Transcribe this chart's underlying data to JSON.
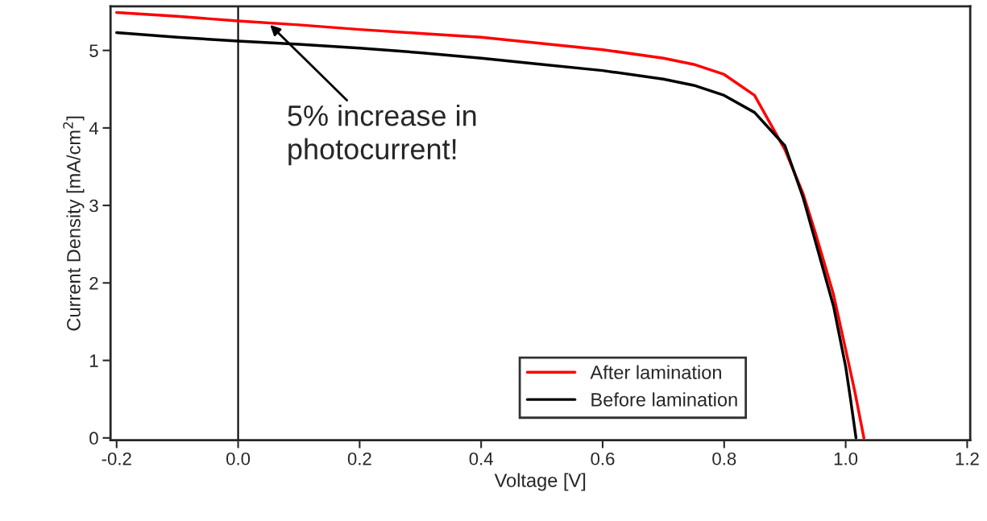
{
  "chart_data": {
    "type": "line",
    "xlabel": "Voltage [V]",
    "ylabel": "Current Density [mA/cm$^{2}$]",
    "xlim": [
      -0.21,
      1.205
    ],
    "ylim": [
      -0.03,
      5.57
    ],
    "xticks": [
      {
        "value": -0.2,
        "label": "-0.2"
      },
      {
        "value": 0,
        "label": "0.0"
      },
      {
        "value": 0.2,
        "label": "0.2"
      },
      {
        "value": 0.4,
        "label": "0.4"
      },
      {
        "value": 0.6,
        "label": "0.6"
      },
      {
        "value": 0.8,
        "label": "0.8"
      },
      {
        "value": 1.0,
        "label": "1.0"
      },
      {
        "value": 1.2,
        "label": "1.2"
      }
    ],
    "yticks": [
      0,
      1,
      2,
      3,
      4,
      5
    ],
    "grid": false,
    "legend": "bottom right",
    "line_style": "solid",
    "marker": "none",
    "ref_lines": [
      {
        "axis": "x",
        "value": 0,
        "color": "#000000"
      }
    ],
    "annotations": [
      {
        "text": "5% increase in\nphotocurrent!",
        "x": 0.05,
        "y": 5.35
      }
    ],
    "series": [
      {
        "name": "After lamination",
        "color": "#ff0000",
        "x": [
          -0.2,
          -0.1,
          0,
          0.1,
          0.2,
          0.3,
          0.4,
          0.5,
          0.6,
          0.7,
          0.75,
          0.8,
          0.85,
          0.9,
          0.93,
          0.95,
          0.98,
          1.0,
          1.015,
          1.03
        ],
        "values": [
          5.49,
          5.44,
          5.38,
          5.33,
          5.27,
          5.22,
          5.17,
          5.09,
          5.01,
          4.9,
          4.82,
          4.69,
          4.42,
          3.72,
          3.15,
          2.65,
          1.85,
          1.14,
          0.6,
          0
        ]
      },
      {
        "name": "Before lamination",
        "color": "#000000",
        "x": [
          -0.2,
          -0.1,
          0,
          0.1,
          0.2,
          0.3,
          0.4,
          0.5,
          0.6,
          0.7,
          0.75,
          0.8,
          0.85,
          0.9,
          0.93,
          0.95,
          0.98,
          1.0,
          1.008,
          1.017
        ],
        "values": [
          5.23,
          5.17,
          5.12,
          5.08,
          5.03,
          4.97,
          4.9,
          4.82,
          4.74,
          4.63,
          4.55,
          4.42,
          4.2,
          3.77,
          3.1,
          2.54,
          1.7,
          0.92,
          0.5,
          0
        ]
      }
    ]
  }
}
